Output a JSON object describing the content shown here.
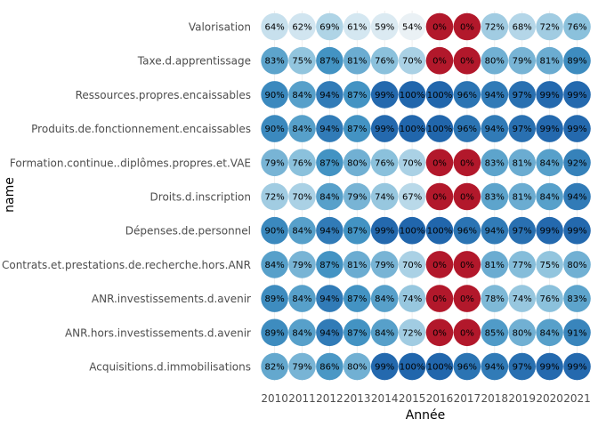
{
  "chart_data": {
    "type": "heatmap",
    "title": "",
    "xlabel": "Année",
    "ylabel": "name",
    "x": [
      "2010",
      "2011",
      "2012",
      "2013",
      "2014",
      "2015",
      "2016",
      "2017",
      "2018",
      "2019",
      "2020",
      "2021"
    ],
    "y": [
      "Valorisation",
      "Taxe.d.apprentissage",
      "Ressources.propres.encaissables",
      "Produits.de.fonctionnement.encaissables",
      "Formation.continue..diplômes.propres.et.VAE",
      "Droits.d.inscription",
      "Dépenses.de.personnel",
      "Contrats.et.prestations.de.recherche.hors.ANR",
      "ANR.investissements.d.avenir",
      "ANR.hors.investissements.d.avenir",
      "Acquisitions.d.immobilisations"
    ],
    "values": [
      [
        64,
        62,
        69,
        61,
        59,
        54,
        0,
        0,
        72,
        68,
        72,
        76
      ],
      [
        83,
        75,
        87,
        81,
        76,
        70,
        0,
        0,
        80,
        79,
        81,
        89
      ],
      [
        90,
        84,
        94,
        87,
        99,
        100,
        100,
        96,
        94,
        97,
        99,
        99
      ],
      [
        90,
        84,
        94,
        87,
        99,
        100,
        100,
        96,
        94,
        97,
        99,
        99
      ],
      [
        79,
        76,
        87,
        80,
        76,
        70,
        0,
        0,
        83,
        81,
        84,
        92
      ],
      [
        72,
        70,
        84,
        79,
        74,
        67,
        0,
        0,
        83,
        81,
        84,
        94
      ],
      [
        90,
        84,
        94,
        87,
        99,
        100,
        100,
        96,
        94,
        97,
        99,
        99
      ],
      [
        84,
        79,
        87,
        81,
        79,
        70,
        0,
        0,
        81,
        77,
        75,
        80
      ],
      [
        89,
        84,
        94,
        87,
        84,
        74,
        0,
        0,
        78,
        74,
        76,
        83
      ],
      [
        89,
        84,
        94,
        87,
        84,
        72,
        0,
        0,
        85,
        80,
        84,
        91
      ],
      [
        82,
        79,
        86,
        80,
        99,
        100,
        100,
        96,
        94,
        97,
        99,
        99
      ]
    ],
    "value_suffix": "%",
    "grid": true,
    "legend": "none"
  }
}
